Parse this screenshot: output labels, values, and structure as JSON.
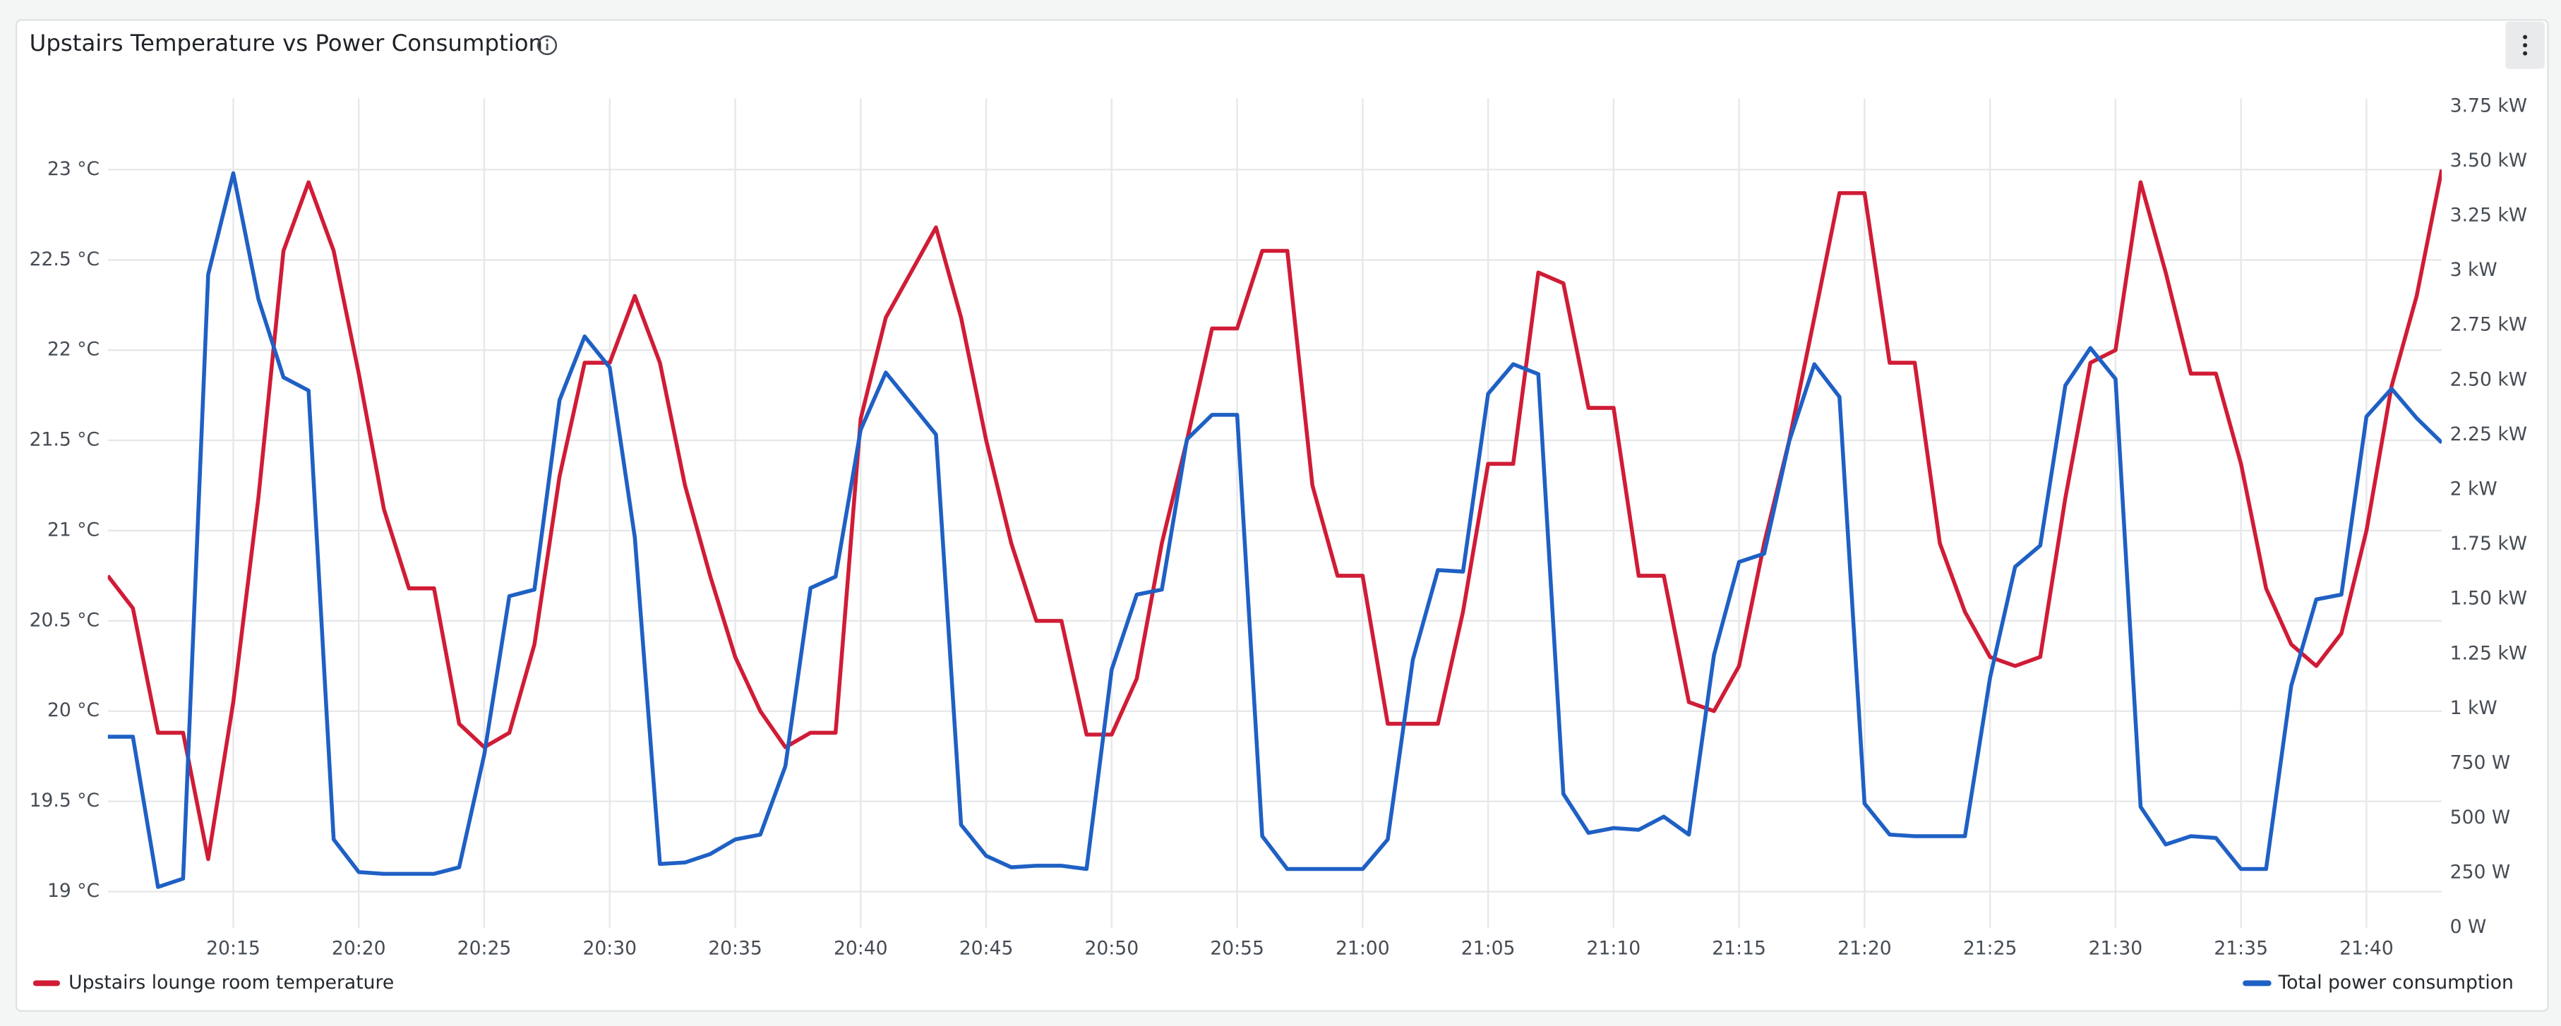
{
  "chart_data": {
    "type": "line",
    "title": "Upstairs Temperature vs Power Consumption",
    "x": [
      "20:10",
      "20:11",
      "20:12",
      "20:13",
      "20:14",
      "20:15",
      "20:16",
      "20:17",
      "20:18",
      "20:19",
      "20:20",
      "20:21",
      "20:22",
      "20:23",
      "20:24",
      "20:25",
      "20:26",
      "20:27",
      "20:28",
      "20:29",
      "20:30",
      "20:31",
      "20:32",
      "20:33",
      "20:34",
      "20:35",
      "20:36",
      "20:37",
      "20:38",
      "20:39",
      "20:40",
      "20:41",
      "20:42",
      "20:43",
      "20:44",
      "20:45",
      "20:46",
      "20:47",
      "20:48",
      "20:49",
      "20:50",
      "20:51",
      "20:52",
      "20:53",
      "20:54",
      "20:55",
      "20:56",
      "20:57",
      "20:58",
      "20:59",
      "21:00",
      "21:01",
      "21:02",
      "21:03",
      "21:04",
      "21:05",
      "21:06",
      "21:07",
      "21:08",
      "21:09",
      "21:10",
      "21:11",
      "21:12",
      "21:13",
      "21:14",
      "21:15",
      "21:16",
      "21:17",
      "21:18",
      "21:19",
      "21:20",
      "21:21",
      "21:22",
      "21:23",
      "21:24",
      "21:25",
      "21:26",
      "21:27",
      "21:28",
      "21:29",
      "21:30",
      "21:31",
      "21:32",
      "21:33",
      "21:34",
      "21:35",
      "21:36",
      "21:37",
      "21:38",
      "21:39",
      "21:40",
      "21:41",
      "21:42",
      "21:43"
    ],
    "series": [
      {
        "name": "Upstairs lounge room temperature",
        "color": "#d01c36",
        "values": [
          20.75,
          20.57,
          19.88,
          19.88,
          19.18,
          20.05,
          21.18,
          22.55,
          22.93,
          22.55,
          21.87,
          21.12,
          20.68,
          20.68,
          19.93,
          19.8,
          19.88,
          20.37,
          21.3,
          21.93,
          21.93,
          22.3,
          21.93,
          21.25,
          20.75,
          20.3,
          20.0,
          19.8,
          19.88,
          19.88,
          21.62,
          22.18,
          22.43,
          22.68,
          22.18,
          21.5,
          20.93,
          20.5,
          20.5,
          19.87,
          19.87,
          20.18,
          20.93,
          21.5,
          22.12,
          22.12,
          22.55,
          22.55,
          21.25,
          20.75,
          20.75,
          19.93,
          19.93,
          19.93,
          20.55,
          21.37,
          21.37,
          22.43,
          22.37,
          21.68,
          21.68,
          20.75,
          20.75,
          20.05,
          20.0,
          20.25,
          20.93,
          21.5,
          22.18,
          22.87,
          22.87,
          21.93,
          21.93,
          20.93,
          20.55,
          20.3,
          20.25,
          20.3,
          21.18,
          21.93,
          22.0,
          22.93,
          22.43,
          21.87,
          21.87,
          21.37,
          20.68,
          20.37,
          20.25,
          20.43,
          21.0,
          21.8,
          22.3,
          23.0
        ]
      },
      {
        "name": "Total power consumption",
        "color": "#1f60c4",
        "axis": "y2",
        "values": [
          872,
          872,
          186,
          224,
          2983,
          3445,
          2871,
          2513,
          2453,
          403,
          254,
          246,
          246,
          246,
          276,
          790,
          1514,
          1544,
          2409,
          2700,
          2558,
          1782,
          291,
          298,
          336,
          403,
          425,
          738,
          1551,
          1603,
          2274,
          2535,
          2394,
          2252,
          470,
          328,
          276,
          283,
          283,
          268,
          1178,
          1521,
          1544,
          2230,
          2342,
          2342,
          418,
          268,
          268,
          268,
          268,
          403,
          1223,
          1633,
          1626,
          2438,
          2573,
          2528,
          611,
          433,
          455,
          447,
          507,
          425,
          1245,
          1670,
          1708,
          2222,
          2573,
          2424,
          567,
          425,
          418,
          418,
          418,
          1141,
          1648,
          1745,
          2476,
          2647,
          2506,
          552,
          380,
          418,
          410,
          268,
          268,
          1104,
          1499,
          1521,
          2334,
          2461,
          2327,
          2215
        ]
      }
    ],
    "xlim": [
      "20:10",
      "21:43"
    ],
    "xticks": [
      "20:15",
      "20:20",
      "20:25",
      "20:30",
      "20:35",
      "20:40",
      "20:45",
      "20:50",
      "20:55",
      "21:00",
      "21:05",
      "21:10",
      "21:15",
      "21:20",
      "21:25",
      "21:30",
      "21:35",
      "21:40"
    ],
    "ylim": [
      18.8,
      23.35
    ],
    "yticks": [
      {
        "value": 19,
        "label": "19 °C"
      },
      {
        "value": 19.5,
        "label": "19.5 °C"
      },
      {
        "value": 20,
        "label": "20 °C"
      },
      {
        "value": 20.5,
        "label": "20.5 °C"
      },
      {
        "value": 21,
        "label": "21 °C"
      },
      {
        "value": 21.5,
        "label": "21.5 °C"
      },
      {
        "value": 22,
        "label": "22 °C"
      },
      {
        "value": 22.5,
        "label": "22.5 °C"
      },
      {
        "value": 23,
        "label": "23 °C"
      }
    ],
    "y2lim": [
      0,
      3750
    ],
    "y2ticks": [
      {
        "value": 0,
        "label": "0 W"
      },
      {
        "value": 250,
        "label": "250 W"
      },
      {
        "value": 500,
        "label": "500 W"
      },
      {
        "value": 750,
        "label": "750 W"
      },
      {
        "value": 1000,
        "label": "1 kW"
      },
      {
        "value": 1250,
        "label": "1.25 kW"
      },
      {
        "value": 1500,
        "label": "1.50 kW"
      },
      {
        "value": 1750,
        "label": "1.75 kW"
      },
      {
        "value": 2000,
        "label": "2 kW"
      },
      {
        "value": 2250,
        "label": "2.25 kW"
      },
      {
        "value": 2500,
        "label": "2.50 kW"
      },
      {
        "value": 2750,
        "label": "2.75 kW"
      },
      {
        "value": 3000,
        "label": "3 kW"
      },
      {
        "value": 3250,
        "label": "3.25 kW"
      },
      {
        "value": 3500,
        "label": "3.50 kW"
      },
      {
        "value": 3750,
        "label": "3.75 kW"
      }
    ],
    "grid": true,
    "legend": "bottom"
  }
}
